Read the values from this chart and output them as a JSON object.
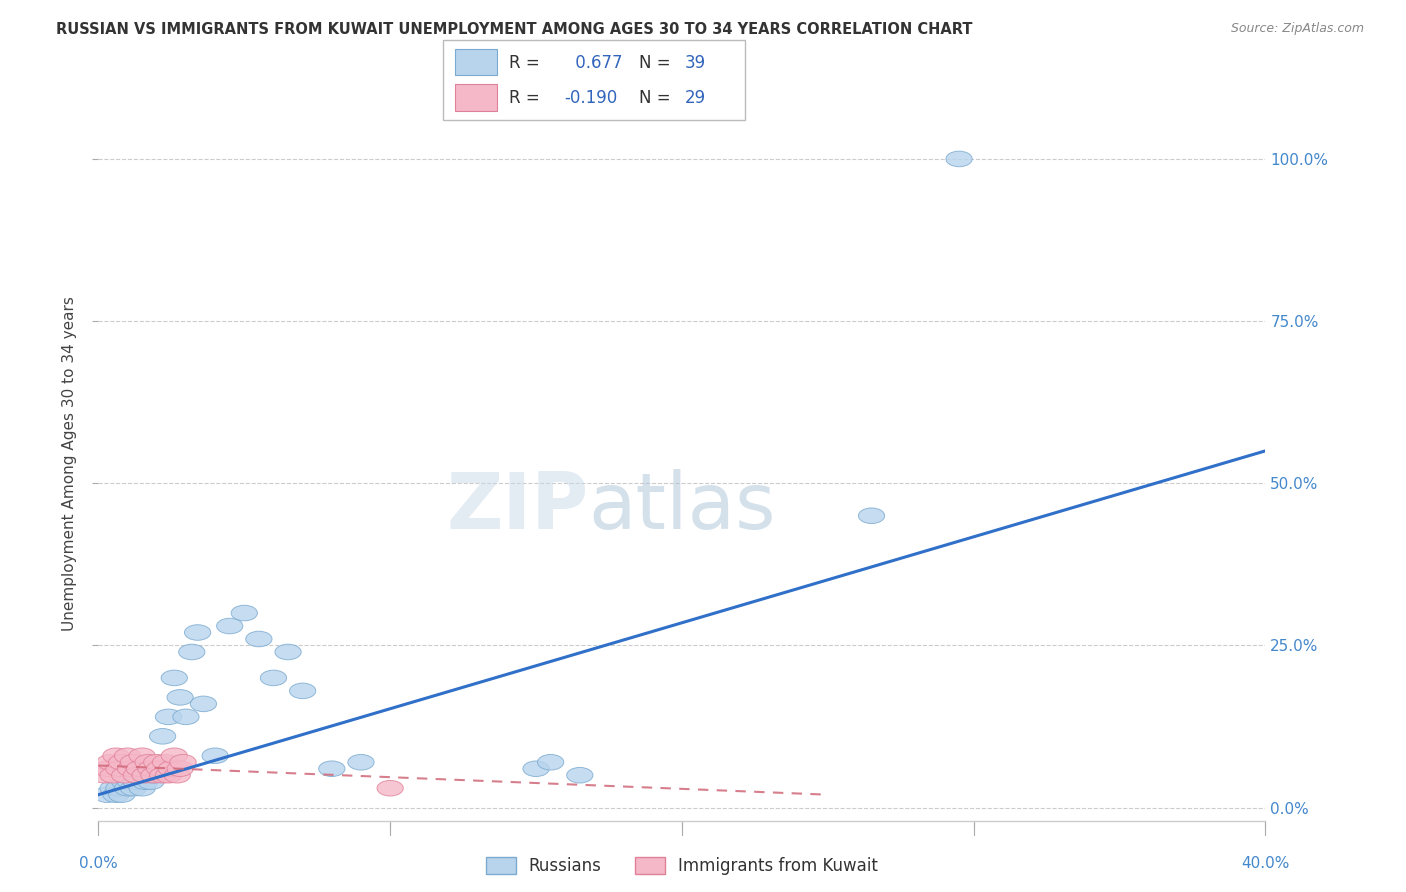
{
  "title": "RUSSIAN VS IMMIGRANTS FROM KUWAIT UNEMPLOYMENT AMONG AGES 30 TO 34 YEARS CORRELATION CHART",
  "source": "Source: ZipAtlas.com",
  "ylabel": "Unemployment Among Ages 30 to 34 years",
  "xlim": [
    0.0,
    0.4
  ],
  "ylim": [
    -0.02,
    1.08
  ],
  "xticks": [
    0.0,
    0.1,
    0.2,
    0.3,
    0.4
  ],
  "xticklabels": [
    "0.0%",
    "",
    "",
    "",
    "40.0%"
  ],
  "yticks": [
    0.0,
    0.25,
    0.5,
    0.75,
    1.0
  ],
  "yticklabels": [
    "0.0%",
    "25.0%",
    "50.0%",
    "75.0%",
    "100.0%"
  ],
  "russian_color": "#b8d4ed",
  "russian_edge_color": "#7aaad0",
  "kuwait_color": "#f5b8c8",
  "kuwait_edge_color": "#e08098",
  "russian_line_color": "#3070c8",
  "kuwait_line_color": "#d06878",
  "watermark_zip": "ZIP",
  "watermark_atlas": "atlas",
  "legend_r1": "R =  0.677",
  "legend_n1": "N = 39",
  "legend_r2": "R = -0.190",
  "legend_n2": "N = 29",
  "russians_x": [
    0.003,
    0.005,
    0.006,
    0.007,
    0.008,
    0.009,
    0.01,
    0.011,
    0.012,
    0.013,
    0.014,
    0.015,
    0.016,
    0.017,
    0.018,
    0.019,
    0.02,
    0.022,
    0.024,
    0.026,
    0.028,
    0.03,
    0.032,
    0.034,
    0.036,
    0.04,
    0.045,
    0.05,
    0.055,
    0.06,
    0.065,
    0.07,
    0.08,
    0.09,
    0.15,
    0.155,
    0.165,
    0.265,
    0.295
  ],
  "russians_y": [
    0.02,
    0.03,
    0.02,
    0.03,
    0.02,
    0.04,
    0.03,
    0.04,
    0.03,
    0.04,
    0.05,
    0.03,
    0.04,
    0.05,
    0.04,
    0.05,
    0.06,
    0.11,
    0.14,
    0.2,
    0.17,
    0.14,
    0.24,
    0.27,
    0.16,
    0.08,
    0.28,
    0.3,
    0.26,
    0.2,
    0.24,
    0.18,
    0.06,
    0.07,
    0.06,
    0.07,
    0.05,
    0.45,
    1.0
  ],
  "kuwait_x": [
    0.002,
    0.003,
    0.004,
    0.005,
    0.006,
    0.007,
    0.008,
    0.009,
    0.01,
    0.011,
    0.012,
    0.013,
    0.014,
    0.015,
    0.016,
    0.017,
    0.018,
    0.019,
    0.02,
    0.021,
    0.022,
    0.023,
    0.024,
    0.025,
    0.026,
    0.027,
    0.028,
    0.029,
    0.1
  ],
  "kuwait_y": [
    0.05,
    0.06,
    0.07,
    0.05,
    0.08,
    0.06,
    0.07,
    0.05,
    0.08,
    0.06,
    0.07,
    0.05,
    0.06,
    0.08,
    0.05,
    0.07,
    0.06,
    0.05,
    0.07,
    0.06,
    0.05,
    0.07,
    0.05,
    0.06,
    0.08,
    0.05,
    0.06,
    0.07,
    0.03
  ],
  "blue_line_x0": 0.0,
  "blue_line_y0": 0.02,
  "blue_line_x1": 0.4,
  "blue_line_y1": 0.55,
  "pink_line_x0": 0.0,
  "pink_line_y0": 0.065,
  "pink_line_x1": 0.25,
  "pink_line_y1": 0.02
}
